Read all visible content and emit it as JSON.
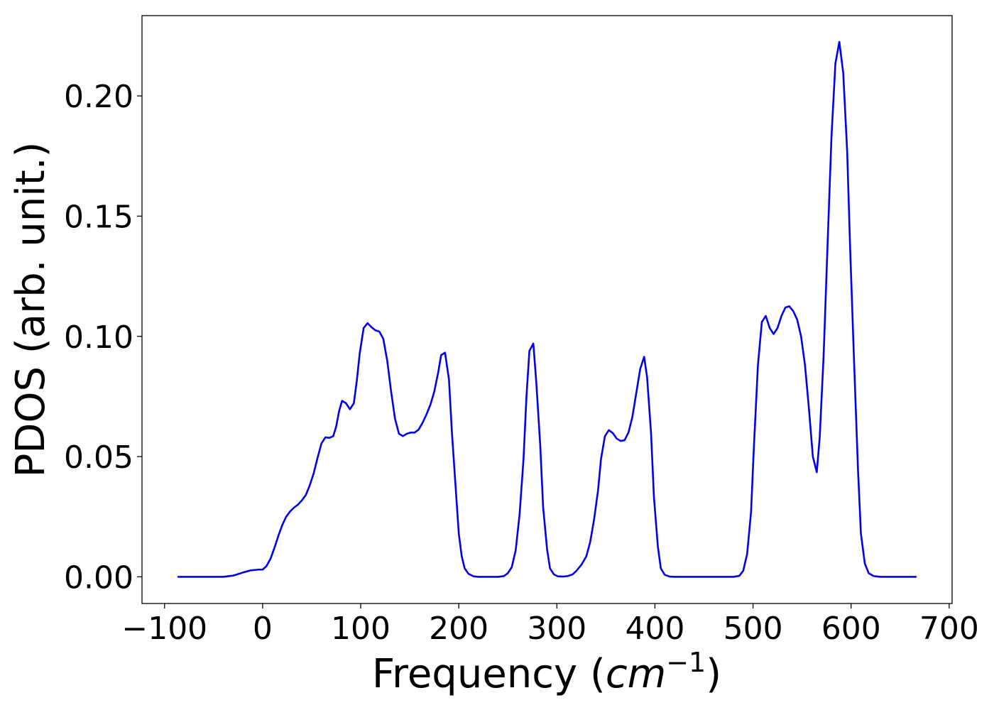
{
  "chart_data": {
    "type": "line",
    "xlabel": "Frequency",
    "xlabel_unit_open": "(",
    "xlabel_unit_base": "cm",
    "xlabel_unit_exp": "−1",
    "xlabel_unit_close": ")",
    "ylabel": "PDOS (arb. unit.)",
    "xlim": [
      -123,
      703
    ],
    "ylim": [
      -0.0111,
      0.2334
    ],
    "xticks": [
      -100,
      0,
      100,
      200,
      300,
      400,
      500,
      600,
      700
    ],
    "xtick_labels": [
      "−100",
      "0",
      "100",
      "200",
      "300",
      "400",
      "500",
      "600",
      "700"
    ],
    "yticks": [
      0.0,
      0.05,
      0.1,
      0.15,
      0.2
    ],
    "ytick_labels": [
      "0.00",
      "0.05",
      "0.10",
      "0.15",
      "0.20"
    ],
    "grid": false,
    "legend": null,
    "series": [
      {
        "color": "#0000ee",
        "points": [
          [
            -86,
            0.0
          ],
          [
            -40,
            0.0
          ],
          [
            -30,
            0.0005
          ],
          [
            -20,
            0.0018
          ],
          [
            -12,
            0.0027
          ],
          [
            -4,
            0.003
          ],
          [
            0,
            0.003
          ],
          [
            4,
            0.0045
          ],
          [
            8,
            0.0075
          ],
          [
            12,
            0.012
          ],
          [
            16,
            0.017
          ],
          [
            20,
            0.0215
          ],
          [
            24,
            0.025
          ],
          [
            28,
            0.0272
          ],
          [
            32,
            0.0288
          ],
          [
            36,
            0.03
          ],
          [
            40,
            0.0318
          ],
          [
            44,
            0.034
          ],
          [
            48,
            0.038
          ],
          [
            52,
            0.043
          ],
          [
            56,
            0.0495
          ],
          [
            60,
            0.0555
          ],
          [
            64,
            0.058
          ],
          [
            68,
            0.0578
          ],
          [
            72,
            0.0585
          ],
          [
            75,
            0.0625
          ],
          [
            78,
            0.069
          ],
          [
            81,
            0.0732
          ],
          [
            85,
            0.0722
          ],
          [
            89,
            0.0697
          ],
          [
            93,
            0.0722
          ],
          [
            96,
            0.0815
          ],
          [
            99,
            0.093
          ],
          [
            103,
            0.1035
          ],
          [
            107,
            0.1055
          ],
          [
            111,
            0.1038
          ],
          [
            115,
            0.1025
          ],
          [
            119,
            0.102
          ],
          [
            123,
            0.099
          ],
          [
            127,
            0.09
          ],
          [
            131,
            0.077
          ],
          [
            135,
            0.0657
          ],
          [
            139,
            0.0595
          ],
          [
            143,
            0.0585
          ],
          [
            147,
            0.0595
          ],
          [
            151,
            0.06
          ],
          [
            155,
            0.06
          ],
          [
            159,
            0.0612
          ],
          [
            163,
            0.064
          ],
          [
            167,
            0.0675
          ],
          [
            171,
            0.0715
          ],
          [
            175,
            0.077
          ],
          [
            179,
            0.085
          ],
          [
            182,
            0.0922
          ],
          [
            186,
            0.0932
          ],
          [
            190,
            0.082
          ],
          [
            193,
            0.06
          ],
          [
            197,
            0.036
          ],
          [
            200,
            0.018
          ],
          [
            203,
            0.0085
          ],
          [
            206,
            0.0035
          ],
          [
            210,
            0.0012
          ],
          [
            215,
            0.0002
          ],
          [
            220,
            0.0
          ],
          [
            240,
            0.0
          ],
          [
            246,
            0.0003
          ],
          [
            250,
            0.0015
          ],
          [
            254,
            0.004
          ],
          [
            258,
            0.011
          ],
          [
            262,
            0.026
          ],
          [
            266,
            0.049
          ],
          [
            269,
            0.075
          ],
          [
            272,
            0.094
          ],
          [
            276,
            0.097
          ],
          [
            279,
            0.081
          ],
          [
            283,
            0.055
          ],
          [
            286,
            0.029
          ],
          [
            290,
            0.0115
          ],
          [
            293,
            0.0035
          ],
          [
            297,
            0.001
          ],
          [
            301,
            0.0002
          ],
          [
            306,
            0.0001
          ],
          [
            311,
            0.0003
          ],
          [
            316,
            0.001
          ],
          [
            320,
            0.0025
          ],
          [
            325,
            0.005
          ],
          [
            330,
            0.0085
          ],
          [
            334,
            0.0145
          ],
          [
            338,
            0.024
          ],
          [
            342,
            0.036
          ],
          [
            345,
            0.049
          ],
          [
            349,
            0.0585
          ],
          [
            353,
            0.061
          ],
          [
            357,
            0.0598
          ],
          [
            361,
            0.0575
          ],
          [
            365,
            0.0565
          ],
          [
            369,
            0.0568
          ],
          [
            373,
            0.06
          ],
          [
            377,
            0.0665
          ],
          [
            381,
            0.0765
          ],
          [
            385,
            0.0865
          ],
          [
            389,
            0.0915
          ],
          [
            392,
            0.083
          ],
          [
            396,
            0.06
          ],
          [
            399,
            0.033
          ],
          [
            403,
            0.0125
          ],
          [
            406,
            0.0035
          ],
          [
            410,
            0.0008
          ],
          [
            415,
            0.0001
          ],
          [
            420,
            0.0
          ],
          [
            480,
            0.0
          ],
          [
            486,
            0.0004
          ],
          [
            490,
            0.0025
          ],
          [
            494,
            0.0095
          ],
          [
            498,
            0.027
          ],
          [
            501,
            0.055
          ],
          [
            505,
            0.088
          ],
          [
            509,
            0.106
          ],
          [
            513,
            0.1085
          ],
          [
            517,
            0.1035
          ],
          [
            521,
            0.101
          ],
          [
            525,
            0.1035
          ],
          [
            529,
            0.1085
          ],
          [
            533,
            0.112
          ],
          [
            537,
            0.1125
          ],
          [
            541,
            0.1105
          ],
          [
            545,
            0.107
          ],
          [
            549,
            0.1
          ],
          [
            553,
            0.088
          ],
          [
            557,
            0.07
          ],
          [
            561,
            0.05
          ],
          [
            565,
            0.0435
          ],
          [
            568,
            0.058
          ],
          [
            572,
            0.092
          ],
          [
            576,
            0.138
          ],
          [
            580,
            0.183
          ],
          [
            584,
            0.2135
          ],
          [
            588,
            0.2225
          ],
          [
            592,
            0.2095
          ],
          [
            596,
            0.177
          ],
          [
            599,
            0.137
          ],
          [
            603,
            0.09
          ],
          [
            607,
            0.045
          ],
          [
            610,
            0.018
          ],
          [
            614,
            0.0055
          ],
          [
            618,
            0.0015
          ],
          [
            623,
            0.0003
          ],
          [
            630,
            0.0
          ],
          [
            666,
            0.0
          ]
        ]
      }
    ]
  }
}
